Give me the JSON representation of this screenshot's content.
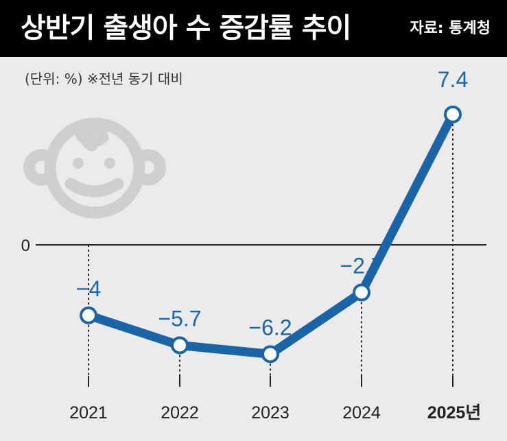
{
  "header": {
    "title": "상반기 출생아 수 증감률 추이",
    "source": "자료: 통계청"
  },
  "unit_note": "(단위: %) ※전년 동기 대비",
  "colors": {
    "line": "#1a65a8",
    "label": "#1a65a8",
    "header_bg": "#000000",
    "background": "#ebebeb",
    "icon": "#cfcfcf"
  },
  "icon": "baby-face-icon",
  "chart_data": {
    "type": "line",
    "title": "상반기 출생아 수 증감률 추이",
    "categories": [
      "2021",
      "2022",
      "2023",
      "2024",
      "2025년"
    ],
    "series": [
      {
        "values": [
          -4,
          -5.7,
          -6.2,
          -2.7,
          7.4
        ],
        "labels": [
          "−4",
          "−5.7",
          "−6.2",
          "−2.7",
          "7.4"
        ]
      }
    ],
    "zero_label": "0",
    "ylim": [
      -8,
      8
    ],
    "highlight_category": "2025년",
    "grid": false
  }
}
